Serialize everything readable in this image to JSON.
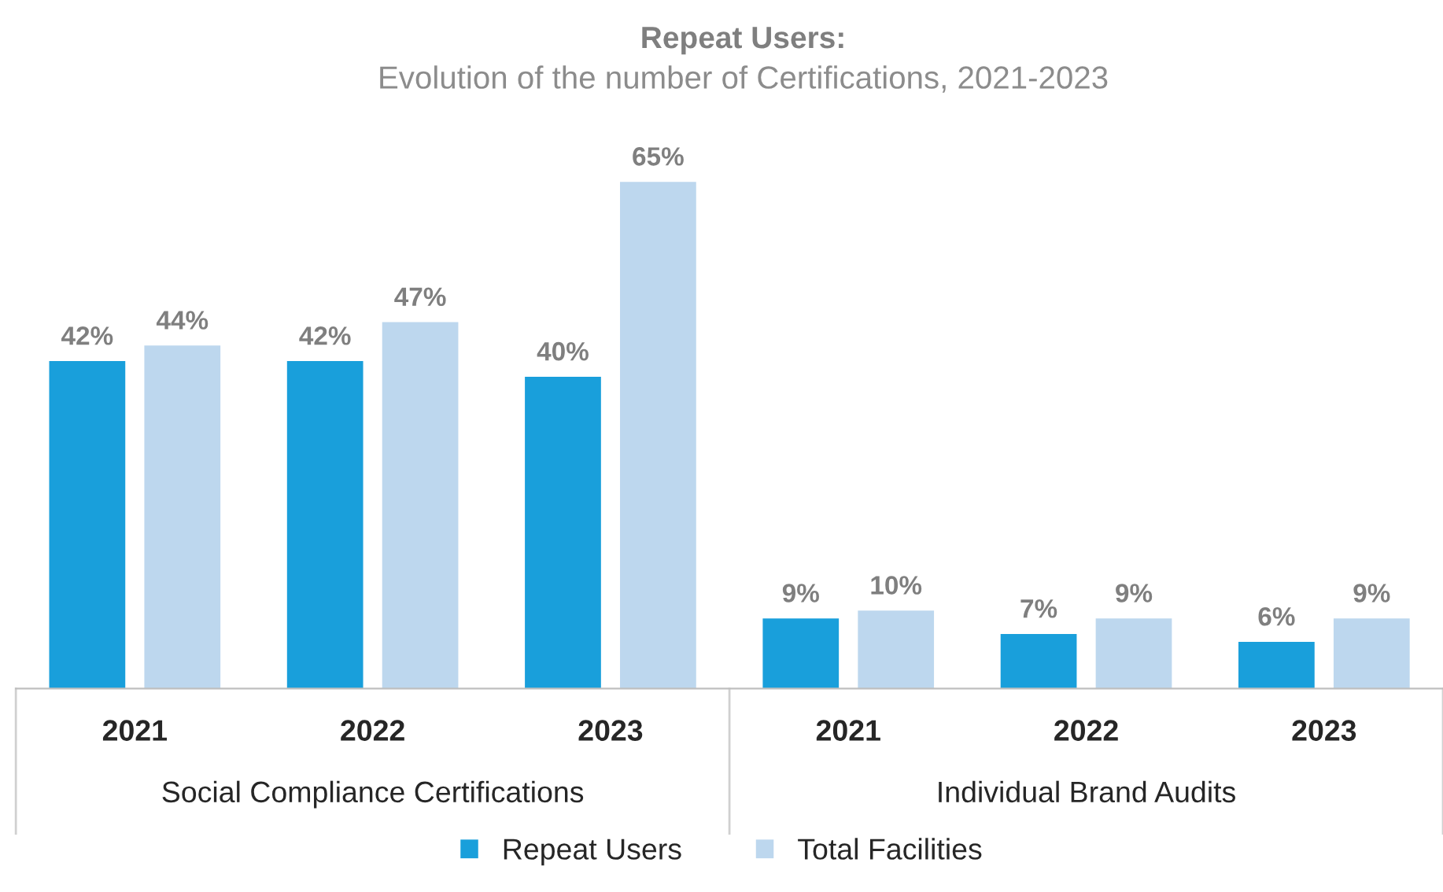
{
  "chart_data": {
    "type": "bar",
    "title": "Repeat Users:",
    "subtitle": "Evolution of the number of Certifications, 2021-2023",
    "categories": [
      "2021",
      "2022",
      "2023",
      "2021",
      "2022",
      "2023"
    ],
    "annotations": [
      "Social Compliance Certifications",
      "Individual Brand Audits"
    ],
    "series": [
      {
        "name": "Repeat Users",
        "color": "#199fdb",
        "values": [
          42,
          42,
          40,
          9,
          7,
          6
        ],
        "value_labels": [
          "42%",
          "42%",
          "40%",
          "9%",
          "7%",
          "6%"
        ]
      },
      {
        "name": "Total Facilities",
        "color": "#bdd7ee",
        "values": [
          44,
          47,
          65,
          10,
          9,
          9
        ],
        "value_labels": [
          "44%",
          "47%",
          "65%",
          "10%",
          "9%",
          "9%"
        ]
      }
    ],
    "tick_labels": "x",
    "grid": false,
    "legend": "bottom"
  }
}
